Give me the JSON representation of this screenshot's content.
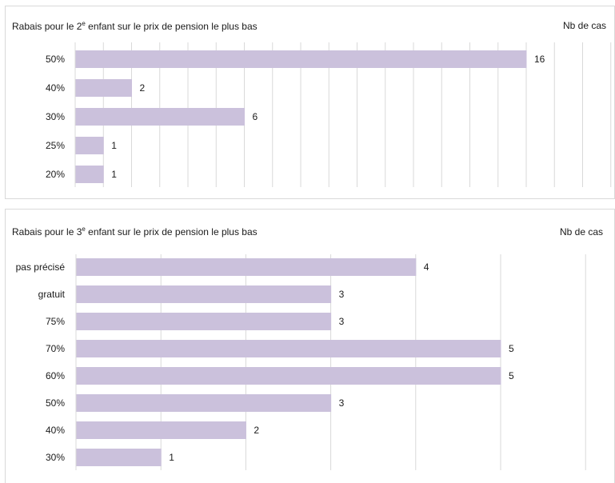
{
  "chart_data": [
    {
      "type": "bar",
      "orientation": "horizontal",
      "title_pre": "Rabais pour le 2",
      "title_sup": "e",
      "title_post": " enfant sur le prix de pension le plus bas",
      "value_label": "Nb de cas",
      "categories": [
        "50%",
        "40%",
        "30%",
        "25%",
        "20%"
      ],
      "values": [
        16,
        2,
        6,
        1,
        1
      ],
      "xlim": [
        0,
        18
      ],
      "grid": true,
      "bar_color": "#cbc1dc"
    },
    {
      "type": "bar",
      "orientation": "horizontal",
      "title_pre": "Rabais pour le 3",
      "title_sup": "e",
      "title_post": " enfant sur le prix de pension le plus bas",
      "value_label": "Nb de cas",
      "categories": [
        "pas précisé",
        "gratuit",
        "75%",
        "70%",
        "60%",
        "50%",
        "40%",
        "30%"
      ],
      "values": [
        4,
        3,
        3,
        5,
        5,
        3,
        2,
        1
      ],
      "xlim": [
        0,
        6
      ],
      "grid": true,
      "bar_color": "#cbc1dc"
    }
  ]
}
